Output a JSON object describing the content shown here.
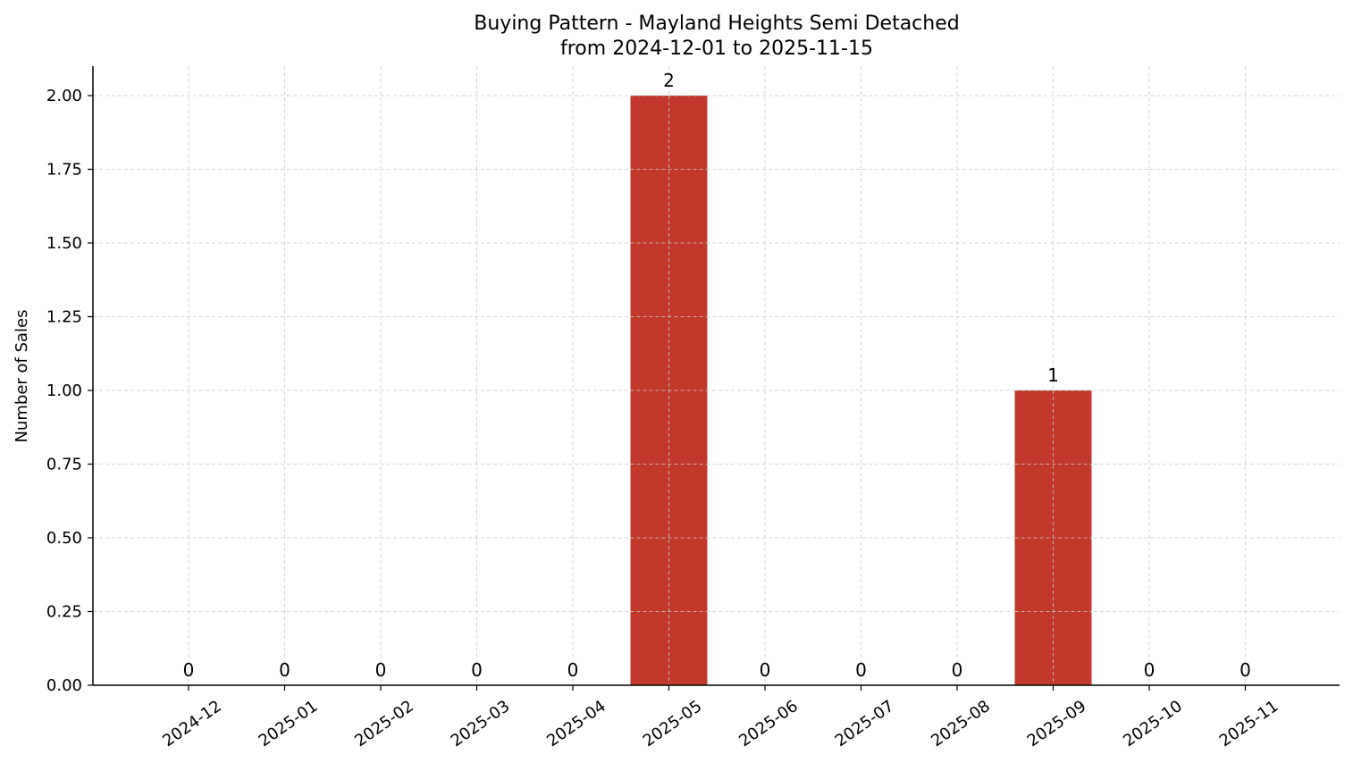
{
  "chart_data": {
    "type": "bar",
    "title": "Buying Pattern - Mayland Heights Semi Detached",
    "subtitle": "from 2024-12-01 to 2025-11-15",
    "xlabel": "",
    "ylabel": "Number of Sales",
    "categories": [
      "2024-12",
      "2025-01",
      "2025-02",
      "2025-03",
      "2025-04",
      "2025-05",
      "2025-06",
      "2025-07",
      "2025-08",
      "2025-09",
      "2025-10",
      "2025-11"
    ],
    "values": [
      0,
      0,
      0,
      0,
      0,
      2,
      0,
      0,
      0,
      1,
      0,
      0
    ],
    "value_labels": [
      "0",
      "0",
      "0",
      "0",
      "0",
      "2",
      "0",
      "0",
      "0",
      "1",
      "0",
      "0"
    ],
    "ylim": [
      0,
      2.1
    ],
    "yticks": [
      0.0,
      0.25,
      0.5,
      0.75,
      1.0,
      1.25,
      1.5,
      1.75,
      2.0
    ],
    "ytick_labels": [
      "0.00",
      "0.25",
      "0.50",
      "0.75",
      "1.00",
      "1.25",
      "1.50",
      "1.75",
      "2.00"
    ],
    "grid": true,
    "bar_color": "#c0392b"
  }
}
